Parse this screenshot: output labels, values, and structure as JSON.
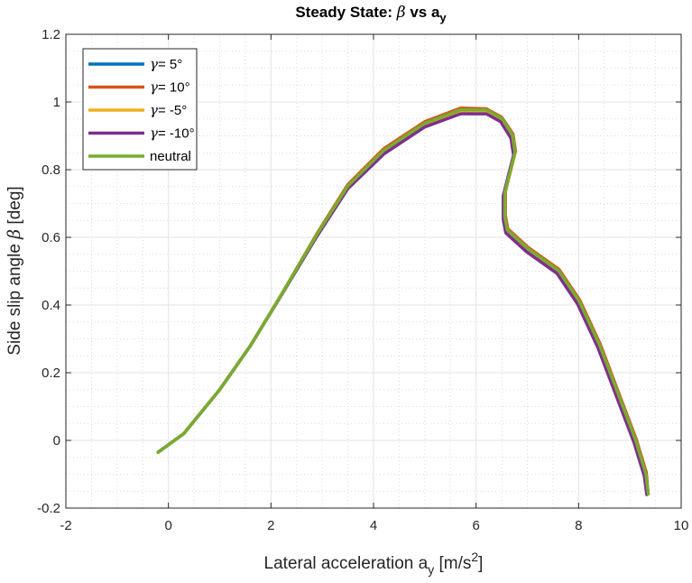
{
  "chart_data": {
    "type": "line",
    "title": "Steady State: β vs a_y",
    "title_parts": {
      "prefix": "Steady State: ",
      "beta": "β",
      "suffix": " vs a",
      "sub": "y"
    },
    "xlabel": "Lateral acceleration a_y [m/s^2]",
    "xlabel_parts": {
      "prefix": "Lateral acceleration a",
      "sub": "y",
      "mid": " [m/s",
      "sup": "2",
      "suffix": "]"
    },
    "ylabel": "Side slip angle β [deg]",
    "ylabel_parts": {
      "prefix": "Side slip angle ",
      "beta": "β",
      "suffix": " [deg]"
    },
    "xlim": [
      -2,
      10
    ],
    "ylim": [
      -0.2,
      1.2
    ],
    "xticks": [
      -2,
      0,
      2,
      4,
      6,
      8,
      10
    ],
    "yticks": [
      -0.2,
      0,
      0.2,
      0.4,
      0.6,
      0.8,
      1,
      1.2
    ],
    "x_tick_labels": [
      "-2",
      "0",
      "2",
      "4",
      "6",
      "8",
      "10"
    ],
    "y_tick_labels": [
      "-0.2",
      "0",
      "0.2",
      "0.4",
      "0.6",
      "0.8",
      "1",
      "1.2"
    ],
    "grid": true,
    "minor_grid": true,
    "legend_position": "top-left",
    "series": [
      {
        "name": "γ= 5°",
        "name_greek": "γ",
        "name_rest": "= 5°",
        "color": "#0072BD",
        "points": [
          [
            -0.2,
            -0.035
          ],
          [
            0.3,
            0.02
          ],
          [
            1.0,
            0.15
          ],
          [
            1.6,
            0.28
          ],
          [
            2.2,
            0.43
          ],
          [
            2.9,
            0.61
          ],
          [
            3.5,
            0.75
          ],
          [
            4.2,
            0.855
          ],
          [
            5.0,
            0.935
          ],
          [
            5.7,
            0.975
          ],
          [
            6.2,
            0.975
          ],
          [
            6.5,
            0.95
          ],
          [
            6.7,
            0.9
          ],
          [
            6.75,
            0.85
          ],
          [
            6.65,
            0.79
          ],
          [
            6.55,
            0.73
          ],
          [
            6.55,
            0.66
          ],
          [
            6.6,
            0.62
          ],
          [
            7.0,
            0.565
          ],
          [
            7.6,
            0.5
          ],
          [
            8.0,
            0.41
          ],
          [
            8.4,
            0.28
          ],
          [
            8.8,
            0.12
          ],
          [
            9.1,
            0.0
          ],
          [
            9.3,
            -0.1
          ],
          [
            9.35,
            -0.155
          ]
        ]
      },
      {
        "name": "γ= 10°",
        "name_greek": "γ",
        "name_rest": "= 10°",
        "color": "#D95319",
        "points": [
          [
            -0.2,
            -0.035
          ],
          [
            0.3,
            0.02
          ],
          [
            1.0,
            0.15
          ],
          [
            1.6,
            0.28
          ],
          [
            2.2,
            0.43
          ],
          [
            2.9,
            0.612
          ],
          [
            3.5,
            0.756
          ],
          [
            4.2,
            0.862
          ],
          [
            5.0,
            0.942
          ],
          [
            5.7,
            0.982
          ],
          [
            6.2,
            0.98
          ],
          [
            6.5,
            0.955
          ],
          [
            6.72,
            0.905
          ],
          [
            6.77,
            0.855
          ],
          [
            6.67,
            0.795
          ],
          [
            6.57,
            0.735
          ],
          [
            6.57,
            0.665
          ],
          [
            6.62,
            0.625
          ],
          [
            7.02,
            0.57
          ],
          [
            7.62,
            0.505
          ],
          [
            8.02,
            0.415
          ],
          [
            8.42,
            0.285
          ],
          [
            8.82,
            0.125
          ],
          [
            9.12,
            0.005
          ],
          [
            9.32,
            -0.095
          ],
          [
            9.35,
            -0.15
          ]
        ]
      },
      {
        "name": "γ= -5°",
        "name_greek": "γ",
        "name_rest": "= -5°",
        "color": "#EDB120",
        "points": [
          [
            -0.2,
            -0.035
          ],
          [
            0.3,
            0.02
          ],
          [
            1.0,
            0.15
          ],
          [
            1.6,
            0.28
          ],
          [
            2.2,
            0.43
          ],
          [
            2.9,
            0.608
          ],
          [
            3.5,
            0.748
          ],
          [
            4.2,
            0.852
          ],
          [
            5.0,
            0.932
          ],
          [
            5.7,
            0.972
          ],
          [
            6.2,
            0.972
          ],
          [
            6.5,
            0.948
          ],
          [
            6.7,
            0.898
          ],
          [
            6.75,
            0.848
          ],
          [
            6.65,
            0.788
          ],
          [
            6.55,
            0.728
          ],
          [
            6.55,
            0.658
          ],
          [
            6.6,
            0.618
          ],
          [
            7.0,
            0.563
          ],
          [
            7.6,
            0.498
          ],
          [
            8.0,
            0.408
          ],
          [
            8.4,
            0.278
          ],
          [
            8.8,
            0.118
          ],
          [
            9.1,
            -0.002
          ],
          [
            9.3,
            -0.1
          ],
          [
            9.35,
            -0.155
          ]
        ]
      },
      {
        "name": "γ= -10°",
        "name_greek": "γ",
        "name_rest": "= -10°",
        "color": "#7E2F8E",
        "points": [
          [
            -0.2,
            -0.035
          ],
          [
            0.3,
            0.02
          ],
          [
            1.0,
            0.15
          ],
          [
            1.6,
            0.28
          ],
          [
            2.2,
            0.428
          ],
          [
            2.9,
            0.604
          ],
          [
            3.5,
            0.744
          ],
          [
            4.2,
            0.846
          ],
          [
            5.0,
            0.926
          ],
          [
            5.7,
            0.965
          ],
          [
            6.2,
            0.965
          ],
          [
            6.48,
            0.942
          ],
          [
            6.68,
            0.893
          ],
          [
            6.73,
            0.843
          ],
          [
            6.63,
            0.783
          ],
          [
            6.53,
            0.723
          ],
          [
            6.53,
            0.653
          ],
          [
            6.58,
            0.613
          ],
          [
            6.98,
            0.558
          ],
          [
            7.58,
            0.493
          ],
          [
            7.98,
            0.403
          ],
          [
            8.38,
            0.273
          ],
          [
            8.78,
            0.113
          ],
          [
            9.08,
            -0.006
          ],
          [
            9.28,
            -0.105
          ],
          [
            9.33,
            -0.16
          ]
        ]
      },
      {
        "name": "neutral",
        "name_greek": "",
        "name_rest": "neutral",
        "color": "#77AC30",
        "points": [
          [
            -0.2,
            -0.035
          ],
          [
            0.3,
            0.02
          ],
          [
            1.0,
            0.15
          ],
          [
            1.6,
            0.28
          ],
          [
            2.2,
            0.43
          ],
          [
            2.9,
            0.61
          ],
          [
            3.5,
            0.752
          ],
          [
            4.2,
            0.857
          ],
          [
            5.0,
            0.937
          ],
          [
            5.7,
            0.977
          ],
          [
            6.2,
            0.977
          ],
          [
            6.5,
            0.952
          ],
          [
            6.71,
            0.902
          ],
          [
            6.76,
            0.852
          ],
          [
            6.66,
            0.792
          ],
          [
            6.56,
            0.732
          ],
          [
            6.56,
            0.662
          ],
          [
            6.61,
            0.622
          ],
          [
            7.01,
            0.567
          ],
          [
            7.61,
            0.502
          ],
          [
            8.01,
            0.412
          ],
          [
            8.41,
            0.282
          ],
          [
            8.81,
            0.122
          ],
          [
            9.11,
            0.002
          ],
          [
            9.31,
            -0.098
          ],
          [
            9.36,
            -0.158
          ]
        ]
      }
    ]
  }
}
